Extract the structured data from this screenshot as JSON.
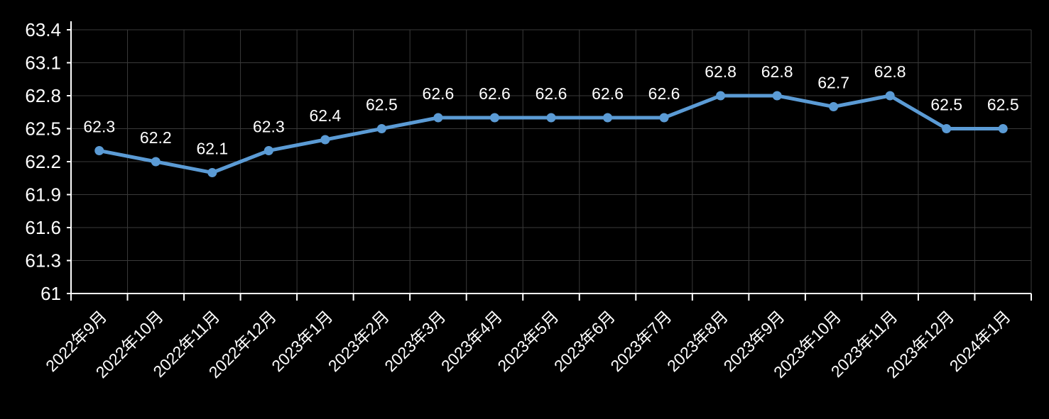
{
  "chart_data": {
    "type": "line",
    "title": "",
    "xlabel": "",
    "ylabel": "",
    "categories": [
      "2022年9月",
      "2022年10月",
      "2022年11月",
      "2022年12月",
      "2023年1月",
      "2023年2月",
      "2023年3月",
      "2023年4月",
      "2023年5月",
      "2023年6月",
      "2023年7月",
      "2023年8月",
      "2023年9月",
      "2023年10月",
      "2023年11月",
      "2023年12月",
      "2024年1月"
    ],
    "series": [
      {
        "values": [
          62.3,
          62.2,
          62.1,
          62.3,
          62.4,
          62.5,
          62.6,
          62.6,
          62.6,
          62.6,
          62.6,
          62.8,
          62.8,
          62.7,
          62.8,
          62.5,
          62.5
        ],
        "data_labels": [
          "62.3",
          "62.2",
          "62.1",
          "62.3",
          "62.4",
          "62.5",
          "62.6",
          "62.6",
          "62.6",
          "62.6",
          "62.6",
          "62.8",
          "62.8",
          "62.7",
          "62.8",
          "62.5",
          "62.5"
        ],
        "color": "#5b9bd5"
      }
    ],
    "ylim": [
      61,
      63.4
    ],
    "yticks": [
      "61",
      "61.3",
      "61.6",
      "61.9",
      "62.2",
      "62.5",
      "62.8",
      "63.1",
      "63.4"
    ],
    "grid": true,
    "legend": "none",
    "background": "#000000"
  }
}
